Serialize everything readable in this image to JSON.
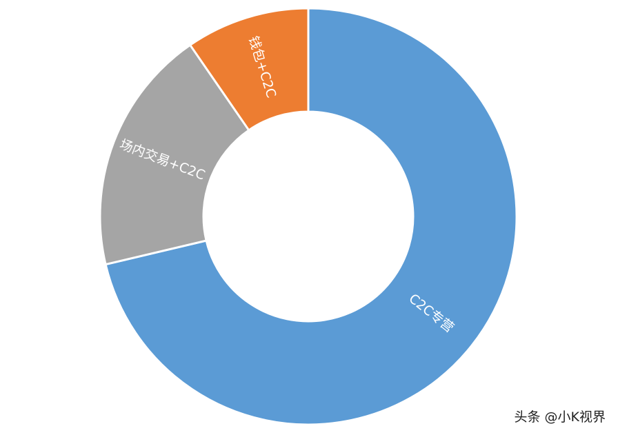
{
  "chart_data": {
    "type": "pie",
    "donut": true,
    "categories": [
      "C2C专营",
      "场内交易+C2C",
      "钱包+C2C"
    ],
    "values": [
      71.3,
      19.1,
      9.6
    ],
    "colors": [
      "#5B9BD5",
      "#A5A5A5",
      "#ED7D31"
    ],
    "start": "top",
    "direction": "clockwise",
    "labels_inside": true,
    "legend": "none"
  },
  "watermark": "头条 @小K视界"
}
